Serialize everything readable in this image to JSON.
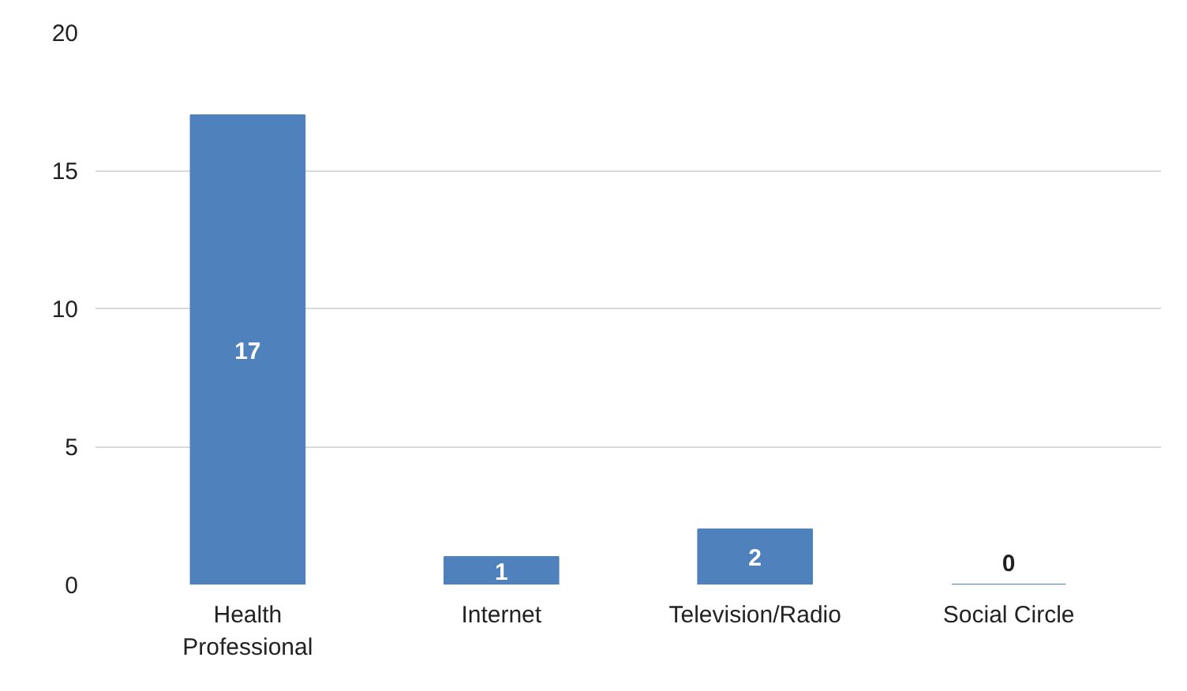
{
  "chart_data": {
    "type": "bar",
    "categories": [
      "Health Professional",
      "Internet",
      "Television/Radio",
      "Social Circle"
    ],
    "values": [
      17,
      1,
      2,
      0
    ],
    "color": "#4f81bd",
    "ylim": [
      0,
      20
    ],
    "yticks": [
      0,
      5,
      10,
      15,
      20
    ],
    "grid": "y",
    "data_labels": true
  }
}
